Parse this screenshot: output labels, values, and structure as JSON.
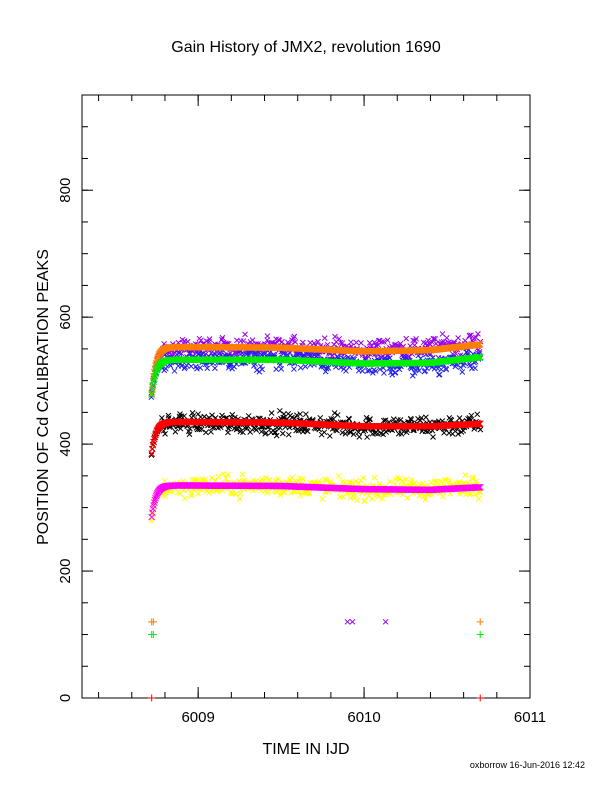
{
  "chart_data": {
    "type": "scatter",
    "title": "Gain History of JMX2, revolution 1690",
    "xlabel": "TIME IN IJD",
    "ylabel": "POSITION OF Cd CALIBRATION PEAKS",
    "xlim": [
      6008.3,
      6011
    ],
    "ylim": [
      0,
      950
    ],
    "x_ticks": [
      6009,
      6010,
      6011
    ],
    "y_ticks": [
      0,
      200,
      400,
      600,
      800
    ],
    "grid": false,
    "legend": "none",
    "time_range": [
      6008.72,
      6010.7
    ],
    "raw_series": [
      {
        "color": "#9900ee",
        "marker": "x",
        "start": 480,
        "mean": 550,
        "noise": 10,
        "trend": [
          [
            6008.8,
            550
          ],
          [
            6009.5,
            552
          ],
          [
            6010.0,
            548
          ],
          [
            6010.4,
            552
          ],
          [
            6010.7,
            560
          ]
        ]
      },
      {
        "color": "#2222ee",
        "marker": "x",
        "start": 478,
        "mean": 532,
        "noise": 10,
        "trend": [
          [
            6008.8,
            530
          ],
          [
            6009.5,
            535
          ],
          [
            6010.0,
            525
          ],
          [
            6010.4,
            525
          ],
          [
            6010.7,
            535
          ]
        ]
      },
      {
        "color": "#000000",
        "marker": "x",
        "start": 385,
        "mean": 433,
        "noise": 10,
        "trend": [
          [
            6008.8,
            433
          ],
          [
            6009.5,
            433
          ],
          [
            6010.0,
            427
          ],
          [
            6010.4,
            428
          ],
          [
            6010.7,
            432
          ]
        ]
      },
      {
        "color": "#ffff00",
        "marker": "x",
        "start": 282,
        "mean": 333,
        "noise": 10,
        "trend": [
          [
            6008.8,
            333
          ],
          [
            6009.5,
            335
          ],
          [
            6010.0,
            328
          ],
          [
            6010.4,
            330
          ],
          [
            6010.7,
            335
          ]
        ]
      }
    ],
    "fit_series": [
      {
        "color": "#ff7f00",
        "start": 480,
        "trend": [
          [
            6008.8,
            553
          ],
          [
            6009.5,
            552
          ],
          [
            6010.0,
            546
          ],
          [
            6010.4,
            548
          ],
          [
            6010.7,
            557
          ]
        ]
      },
      {
        "color": "#00ee00",
        "start": 478,
        "trend": [
          [
            6008.8,
            533
          ],
          [
            6009.5,
            533
          ],
          [
            6010.0,
            527
          ],
          [
            6010.4,
            528
          ],
          [
            6010.7,
            537
          ]
        ]
      },
      {
        "color": "#ff0000",
        "start": 385,
        "trend": [
          [
            6008.8,
            435
          ],
          [
            6009.5,
            434
          ],
          [
            6010.0,
            428
          ],
          [
            6010.4,
            428
          ],
          [
            6010.7,
            432
          ]
        ]
      },
      {
        "color": "#ff00ff",
        "start": 285,
        "trend": [
          [
            6008.8,
            335
          ],
          [
            6009.5,
            334
          ],
          [
            6010.0,
            329
          ],
          [
            6010.4,
            328
          ],
          [
            6010.7,
            332
          ]
        ]
      }
    ],
    "outliers": [
      {
        "x": 6008.72,
        "y": 120,
        "color": "#ff7f00",
        "marker": "+"
      },
      {
        "x": 6008.73,
        "y": 120,
        "color": "#ff7f00",
        "marker": "+"
      },
      {
        "x": 6008.72,
        "y": 100,
        "color": "#00ee00",
        "marker": "+"
      },
      {
        "x": 6008.73,
        "y": 100,
        "color": "#00ee00",
        "marker": "+"
      },
      {
        "x": 6010.7,
        "y": 120,
        "color": "#ff7f00",
        "marker": "+"
      },
      {
        "x": 6010.7,
        "y": 100,
        "color": "#00ee00",
        "marker": "+"
      },
      {
        "x": 6009.9,
        "y": 120,
        "color": "#9900ee",
        "marker": "x"
      },
      {
        "x": 6009.93,
        "y": 120,
        "color": "#9900ee",
        "marker": "x"
      },
      {
        "x": 6010.13,
        "y": 120,
        "color": "#9900ee",
        "marker": "x"
      },
      {
        "x": 6008.72,
        "y": 0,
        "color": "#ff0000",
        "marker": "+"
      },
      {
        "x": 6010.7,
        "y": 0,
        "color": "#ff0000",
        "marker": "+"
      }
    ]
  },
  "footer": "oxborrow 16-Jun-2016 12:42"
}
